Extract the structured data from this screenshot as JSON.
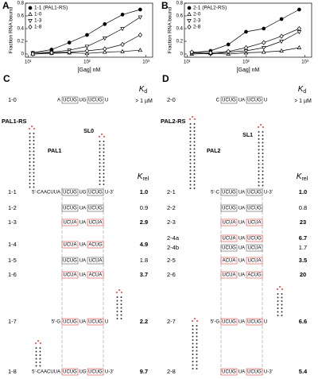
{
  "chart_data": [
    {
      "type": "scatter",
      "panel": "A",
      "ylabel": "Fraction RNA bound",
      "xlabel": "[Gag] nM",
      "xscale": "log",
      "xlim": [
        9,
        1300
      ],
      "ylim": [
        -0.05,
        0.8
      ],
      "xticks": [
        {
          "value": 10,
          "label": "10¹"
        },
        {
          "value": 100,
          "label": "10²"
        },
        {
          "value": 1000,
          "label": "10³"
        }
      ],
      "yticks": [
        0,
        0.2,
        0.4,
        0.6,
        0.8
      ],
      "series": [
        {
          "name": "1-1 (PAL1-RS)",
          "marker": "circle",
          "filled": true,
          "color": "#000000",
          "x": [
            12,
            25,
            50,
            100,
            200,
            400,
            800
          ],
          "values": [
            0.02,
            0.07,
            0.18,
            0.3,
            0.47,
            0.62,
            0.7
          ]
        },
        {
          "name": "1-0",
          "marker": "triangle",
          "filled": false,
          "color": "#000000",
          "x": [
            12,
            25,
            50,
            100,
            200,
            400,
            800
          ],
          "values": [
            0.0,
            0.01,
            0.02,
            0.01,
            0.03,
            0.04,
            0.06
          ]
        },
        {
          "name": "1-3",
          "marker": "triangle-down",
          "filled": false,
          "color": "#000000",
          "x": [
            12,
            25,
            50,
            100,
            200,
            400,
            800
          ],
          "values": [
            0.02,
            0.03,
            0.06,
            0.12,
            0.25,
            0.4,
            0.58
          ]
        },
        {
          "name": "1-8",
          "marker": "diamond",
          "filled": false,
          "color": "#000000",
          "x": [
            12,
            25,
            50,
            100,
            200,
            400,
            800
          ],
          "values": [
            0.0,
            0.02,
            0.03,
            0.05,
            0.08,
            0.15,
            0.3
          ]
        }
      ]
    },
    {
      "type": "scatter",
      "panel": "B",
      "ylabel": "Fraction RNA bound",
      "xlabel": "[Gag] nM",
      "xscale": "log",
      "xlim": [
        9,
        1300
      ],
      "ylim": [
        -0.05,
        0.8
      ],
      "xticks": [
        {
          "value": 10,
          "label": "10¹"
        },
        {
          "value": 100,
          "label": "10²"
        },
        {
          "value": 1000,
          "label": "10³"
        }
      ],
      "yticks": [
        0,
        0.2,
        0.4,
        0.6,
        0.8
      ],
      "series": [
        {
          "name": "2-1 (PAL2-RS)",
          "marker": "circle",
          "filled": true,
          "color": "#000000",
          "x": [
            12,
            25,
            50,
            100,
            200,
            400,
            800
          ],
          "values": [
            0.02,
            0.05,
            0.15,
            0.35,
            0.4,
            0.55,
            0.7
          ]
        },
        {
          "name": "2-0",
          "marker": "triangle",
          "filled": false,
          "color": "#000000",
          "x": [
            12,
            25,
            50,
            100,
            200,
            400,
            800
          ],
          "values": [
            0.0,
            0.01,
            0.0,
            0.02,
            0.03,
            0.05,
            0.1
          ]
        },
        {
          "name": "2-3",
          "marker": "triangle-down",
          "filled": false,
          "color": "#000000",
          "x": [
            12,
            25,
            50,
            100,
            200,
            400,
            800
          ],
          "values": [
            0.02,
            0.0,
            0.03,
            0.05,
            0.1,
            0.2,
            0.35
          ]
        },
        {
          "name": "2-8",
          "marker": "diamond",
          "filled": false,
          "color": "#000000",
          "x": [
            12,
            25,
            50,
            100,
            200,
            400,
            800
          ],
          "values": [
            0.03,
            0.02,
            0.04,
            0.1,
            0.18,
            0.28,
            0.4
          ]
        }
      ]
    }
  ],
  "panels": [
    {
      "label": "C",
      "kd_header": {
        "symbol": "K",
        "sub": "d"
      },
      "kd_value": "> 1 µM",
      "krel_header": {
        "symbol": "K",
        "sub": "rel"
      },
      "construct": "PAL1-RS",
      "motif": "PAL1",
      "loop": "SL0",
      "rows": [
        {
          "label": "1-0",
          "seq": [
            "A",
            "UCUG",
            "UG",
            "UCUG",
            "U"
          ]
        },
        {
          "label": "1-1",
          "seq": [
            "5'-CAACUUA",
            "UCUG",
            "UG",
            "UCUG",
            "U-3'"
          ],
          "krel": "1.0",
          "color": "#000000",
          "bold": true
        },
        {
          "label": "1-2",
          "seq": [
            "UCUG",
            "UA",
            "UCUG"
          ],
          "krel": "0.9",
          "color": "#000000"
        },
        {
          "label": "1-3",
          "seq": [
            "UCUA",
            "UA",
            "UCUA"
          ],
          "krel": "2.9",
          "color": "#e0413a"
        },
        {
          "label": "1-4",
          "seq": [
            "UCUA",
            "UA",
            "ACUG"
          ],
          "krel": "4.9",
          "color": "#e0413a"
        },
        {
          "label": "1-5",
          "seq": [
            "UCUG",
            "UA",
            "UCUA"
          ],
          "krel": "1.8",
          "color": "#000000"
        },
        {
          "label": "1-6",
          "seq": [
            "UCUA",
            "UA",
            "ACUA"
          ],
          "krel": "3.7",
          "color": "#e0413a"
        },
        {
          "label": "1-7",
          "seq": [
            "5'-G",
            "UCUG",
            "UA",
            "UCUG",
            "U"
          ],
          "krel": "2.2",
          "color": "#e0413a"
        },
        {
          "label": "1-8",
          "seq": [
            "5'-CAACUUA",
            "UCUG",
            "UG",
            "UCUG",
            "U-3'"
          ],
          "krel": "9.7",
          "color": "#e0413a"
        }
      ]
    },
    {
      "label": "D",
      "kd_header": {
        "symbol": "K",
        "sub": "d"
      },
      "kd_value": "> 1 µM",
      "krel_header": {
        "symbol": "K",
        "sub": "rel"
      },
      "construct": "PAL2-RS",
      "motif": "PAL2",
      "loop": "SL1",
      "rows": [
        {
          "label": "2-0",
          "seq": [
            "C",
            "UCUG",
            "UA",
            "UCUG",
            "U"
          ]
        },
        {
          "label": "2-1",
          "seq": [
            "5'-C",
            "UCUG",
            "UA",
            "UCUG",
            "U-3'"
          ],
          "krel": "1.0",
          "color": "#000000",
          "bold": true
        },
        {
          "label": "2-2",
          "seq": [
            "UCUG",
            "UA",
            "UCUG"
          ],
          "krel": "0.8",
          "color": "#000000"
        },
        {
          "label": "2-3",
          "seq": [
            "UCUA",
            "UA",
            "UCUA"
          ],
          "krel": "23",
          "color": "#e0413a"
        },
        {
          "label": "2-4a",
          "seq": [
            "UCUA",
            "UA",
            "UCUG"
          ],
          "krel": "6.7",
          "color": "#e0413a"
        },
        {
          "label": "2-4b",
          "seq": [
            "UCUG",
            "UA",
            "UCUA"
          ],
          "krel": "1.7",
          "color": "#000000"
        },
        {
          "label": "2-5",
          "seq": [
            "ACUA",
            "UA",
            "UCUA"
          ],
          "krel": "3.5",
          "color": "#e0413a"
        },
        {
          "label": "2-6",
          "seq": [
            "UCUA",
            "UA",
            "ACUG"
          ],
          "krel": "20",
          "color": "#e0413a"
        },
        {
          "label": "2-7",
          "seq": [
            "5'-G",
            "UCUG",
            "UA",
            "UCUG",
            "U"
          ],
          "krel": "6.6",
          "color": "#e0413a"
        },
        {
          "label": "2-8",
          "seq": [
            "UCUG",
            "UA",
            "UCUG",
            "U-3'"
          ],
          "krel": "5.4",
          "color": "#e0413a"
        }
      ]
    }
  ]
}
